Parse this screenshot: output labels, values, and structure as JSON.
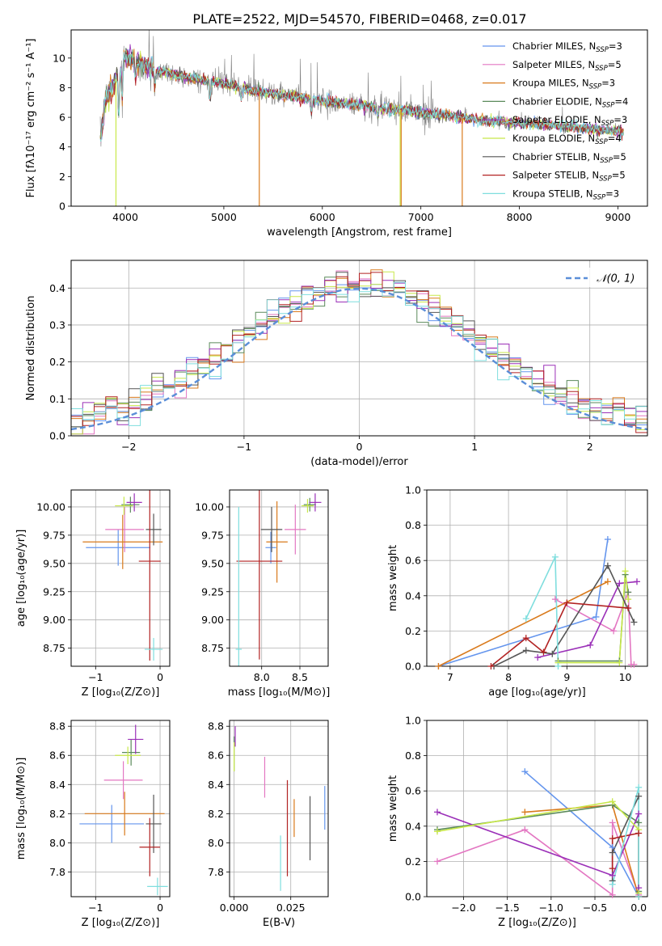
{
  "figure": {
    "title": "PLATE=2522, MJD=54570, FIBERID=0468, z=0.017"
  },
  "colors": {
    "cornflower": "#6495ed",
    "hotpink": "#e377c2",
    "orange": "#d97a1c",
    "darkgreen": "#5b8a5b",
    "purple": "#9b30b8",
    "yellowgreen": "#c8e84a",
    "dimgray": "#555555",
    "firebrick": "#b22222",
    "turquoise": "#7fdede",
    "gaussian": "#5a8ed8",
    "grid": "#b0b0b0",
    "spec_gray": "#808080"
  },
  "legend_models": [
    {
      "label": "Chabrier MILES, N",
      "sub": "SSP",
      "tail": "=3",
      "color": "#6495ed"
    },
    {
      "label": "Salpeter MILES, N",
      "sub": "SSP",
      "tail": "=5",
      "color": "#e377c2"
    },
    {
      "label": "Kroupa MILES, N",
      "sub": "SSP",
      "tail": "=3",
      "color": "#d97a1c"
    },
    {
      "label": "Chabrier ELODIE, N",
      "sub": "SSP",
      "tail": "=4",
      "color": "#5b8a5b"
    },
    {
      "label": "Salpeter ELODIE, N",
      "sub": "SSP",
      "tail": "=3",
      "color": "#9b30b8"
    },
    {
      "label": "Kroupa ELODIE, N",
      "sub": "SSP",
      "tail": "=4",
      "color": "#c8e84a"
    },
    {
      "label": "Chabrier STELIB, N",
      "sub": "SSP",
      "tail": "=5",
      "color": "#555555"
    },
    {
      "label": "Salpeter STELIB, N",
      "sub": "SSP",
      "tail": "=5",
      "color": "#b22222"
    },
    {
      "label": "Kroupa STELIB, N",
      "sub": "SSP",
      "tail": "=3",
      "color": "#7fdede"
    }
  ],
  "chart_data": [
    {
      "id": "spectrum",
      "type": "line",
      "xlabel": "wavelength [Angstrom, rest frame]",
      "ylabel": "Flux [fλ10⁻¹⁷ erg cm⁻² s⁻¹ A⁻¹]",
      "xlim": [
        3450,
        9300
      ],
      "ylim": [
        0,
        11.9
      ],
      "xticks": [
        4000,
        5000,
        6000,
        7000,
        8000,
        9000
      ],
      "yticks": [
        0,
        2,
        4,
        6,
        8,
        10
      ],
      "grid": false,
      "legend": "upper right",
      "continuum_anchors": {
        "x": [
          3750,
          3800,
          3900,
          4000,
          4100,
          4300,
          4500,
          4800,
          5000,
          5300,
          5500,
          5800,
          6000,
          6300,
          6500,
          6800,
          7000,
          7300,
          7500,
          7800,
          8000,
          8300,
          8600,
          9050
        ],
        "y": [
          4.5,
          7.2,
          8.5,
          10.2,
          9.8,
          9.2,
          8.9,
          8.5,
          8.3,
          7.8,
          7.6,
          7.3,
          7.1,
          6.9,
          6.7,
          6.5,
          6.3,
          6.1,
          5.9,
          5.7,
          5.6,
          5.5,
          5.3,
          5.0
        ]
      },
      "absorption_features": [
        {
          "x": 3934,
          "depth": 3.0
        },
        {
          "x": 3968,
          "depth": 2.5
        },
        {
          "x": 4102,
          "depth": 1.5
        },
        {
          "x": 4300,
          "depth": 1.2
        },
        {
          "x": 4861,
          "depth": 1.4
        },
        {
          "x": 5175,
          "depth": 0.8
        },
        {
          "x": 5890,
          "depth": 0.9
        },
        {
          "x": 6563,
          "depth": 0.6
        }
      ],
      "spikes": [
        {
          "x": 5360,
          "y": 0,
          "color": "#d97a1c"
        },
        {
          "x": 6790,
          "y": 0,
          "color": "#c8e84a"
        },
        {
          "x": 6800,
          "y": 0,
          "color": "#d97a1c"
        },
        {
          "x": 7420,
          "y": 0,
          "color": "#d97a1c"
        },
        {
          "x": 3905,
          "y": 0,
          "color": "#c8e84a"
        }
      ]
    },
    {
      "id": "residuals",
      "type": "step",
      "xlabel": "(data-model)/error",
      "ylabel": "Normed distribution",
      "xlim": [
        -2.5,
        2.5
      ],
      "ylim": [
        0,
        0.475
      ],
      "xticks": [
        -2,
        -1,
        0,
        1,
        2
      ],
      "yticks": [
        0,
        0.1,
        0.2,
        0.3,
        0.4
      ],
      "grid": true,
      "legend": "upper right",
      "gaussian_label": "𝒩(0, 1)",
      "bins": 50,
      "bin_range": [
        -2.5,
        2.5
      ]
    },
    {
      "id": "age-vs-z",
      "type": "errorbar",
      "xlabel": "Z [log₁₀(Z/Z⊙)]",
      "ylabel": "age  [log₁₀(age/yr)]",
      "xlim": [
        -1.38,
        0.15
      ],
      "ylim": [
        8.59,
        10.15
      ],
      "xticks": [
        -1,
        0
      ],
      "yticks": [
        8.75,
        9.0,
        9.25,
        9.5,
        9.75,
        10.0
      ],
      "grid": true,
      "points": [
        {
          "x": -0.65,
          "y": 9.64,
          "xerr": 0.5,
          "yerr": 0.16,
          "color": "#6495ed"
        },
        {
          "x": -0.55,
          "y": 9.8,
          "xerr": 0.3,
          "yerr": 0.2,
          "color": "#e377c2"
        },
        {
          "x": -0.58,
          "y": 9.69,
          "xerr": 0.62,
          "yerr": 0.24,
          "color": "#d97a1c"
        },
        {
          "x": -0.46,
          "y": 10.02,
          "xerr": 0.14,
          "yerr": 0.07,
          "color": "#5b8a5b"
        },
        {
          "x": -0.4,
          "y": 10.04,
          "xerr": 0.12,
          "yerr": 0.08,
          "color": "#9b30b8"
        },
        {
          "x": -0.56,
          "y": 10.01,
          "xerr": 0.14,
          "yerr": 0.08,
          "color": "#c8e84a"
        },
        {
          "x": -0.1,
          "y": 9.8,
          "xerr": 0.12,
          "yerr": 0.14,
          "color": "#555555"
        },
        {
          "x": -0.16,
          "y": 9.52,
          "xerr": 0.17,
          "yerr": 0.88,
          "color": "#b22222"
        },
        {
          "x": -0.1,
          "y": 8.74,
          "xerr": 0.14,
          "yerr": 0.1,
          "color": "#7fdede"
        }
      ]
    },
    {
      "id": "age-vs-mass",
      "type": "errorbar",
      "xlabel": "mass [log₁₀(M/M⊙)]",
      "ylabel": "",
      "xlim": [
        7.58,
        8.87
      ],
      "ylim": [
        8.59,
        10.15
      ],
      "xticks": [
        8.0,
        8.5
      ],
      "yticks": [
        8.75,
        9.0,
        9.25,
        9.5,
        9.75,
        10.0
      ],
      "grid": true,
      "points": [
        {
          "x": 8.12,
          "y": 9.64,
          "xerr": 0.07,
          "yerr": 0.14,
          "color": "#6495ed"
        },
        {
          "x": 8.44,
          "y": 9.8,
          "xerr": 0.14,
          "yerr": 0.22,
          "color": "#e377c2"
        },
        {
          "x": 8.2,
          "y": 9.69,
          "xerr": 0.14,
          "yerr": 0.36,
          "color": "#d97a1c"
        },
        {
          "x": 8.63,
          "y": 10.02,
          "xerr": 0.08,
          "yerr": 0.06,
          "color": "#5b8a5b"
        },
        {
          "x": 8.7,
          "y": 10.04,
          "xerr": 0.08,
          "yerr": 0.08,
          "color": "#9b30b8"
        },
        {
          "x": 8.6,
          "y": 10.01,
          "xerr": 0.08,
          "yerr": 0.06,
          "color": "#c8e84a"
        },
        {
          "x": 8.13,
          "y": 9.8,
          "xerr": 0.14,
          "yerr": 0.2,
          "color": "#555555"
        },
        {
          "x": 7.97,
          "y": 9.52,
          "xerr": 0.3,
          "yerr": 0.87,
          "color": "#b22222"
        },
        {
          "x": 7.7,
          "y": 8.74,
          "xerr": 0.04,
          "yerr": 1.26,
          "color": "#7fdede"
        }
      ]
    },
    {
      "id": "weight-vs-age",
      "type": "line",
      "xlabel": "age  [log₁₀(age/yr)]",
      "ylabel": "mass weight",
      "xlim": [
        6.6,
        10.38
      ],
      "ylim": [
        0,
        1.0
      ],
      "xticks": [
        7,
        8,
        9,
        10
      ],
      "yticks": [
        0,
        0.2,
        0.4,
        0.6,
        0.8,
        1.0
      ],
      "grid": true,
      "series": [
        {
          "color": "#6495ed",
          "x": [
            6.8,
            9.5,
            9.7
          ],
          "y": [
            0.0,
            0.28,
            0.72
          ]
        },
        {
          "color": "#e377c2",
          "x": [
            8.8,
            9.8,
            10.05,
            10.1,
            10.15
          ],
          "y": [
            0.38,
            0.2,
            0.42,
            0.01,
            0.01
          ]
        },
        {
          "color": "#d97a1c",
          "x": [
            6.8,
            9.7
          ],
          "y": [
            0.0,
            0.48
          ]
        },
        {
          "color": "#5b8a5b",
          "x": [
            8.85,
            9.9,
            10.0,
            10.05
          ],
          "y": [
            0.03,
            0.03,
            0.52,
            0.42
          ]
        },
        {
          "color": "#9b30b8",
          "x": [
            8.5,
            9.4,
            9.9,
            10.2
          ],
          "y": [
            0.05,
            0.12,
            0.47,
            0.48
          ]
        },
        {
          "color": "#c8e84a",
          "x": [
            8.85,
            9.9,
            10.0,
            10.05
          ],
          "y": [
            0.02,
            0.02,
            0.54,
            0.38
          ]
        },
        {
          "color": "#555555",
          "x": [
            7.75,
            8.3,
            8.75,
            9.7,
            10.15
          ],
          "y": [
            0.0,
            0.09,
            0.07,
            0.57,
            0.25
          ]
        },
        {
          "color": "#b22222",
          "x": [
            7.7,
            8.3,
            8.6,
            9.0,
            10.05
          ],
          "y": [
            0.0,
            0.16,
            0.08,
            0.36,
            0.33
          ]
        },
        {
          "color": "#7fdede",
          "x": [
            8.3,
            8.8,
            8.85
          ],
          "y": [
            0.27,
            0.62,
            0.0
          ]
        }
      ]
    },
    {
      "id": "mass-vs-z",
      "type": "errorbar",
      "xlabel": "Z [log₁₀(Z/Z⊙)]",
      "ylabel": "mass [log₁₀(M/M⊙)]",
      "xlim": [
        -1.38,
        0.15
      ],
      "ylim": [
        7.63,
        8.84
      ],
      "xticks": [
        -1,
        0
      ],
      "yticks": [
        7.8,
        8.0,
        8.2,
        8.4,
        8.6,
        8.8
      ],
      "grid": true,
      "points": [
        {
          "x": -0.75,
          "y": 8.13,
          "xerr": 0.5,
          "yerr": 0.13,
          "color": "#6495ed"
        },
        {
          "x": -0.57,
          "y": 8.43,
          "xerr": 0.3,
          "yerr": 0.13,
          "color": "#e377c2"
        },
        {
          "x": -0.55,
          "y": 8.2,
          "xerr": 0.62,
          "yerr": 0.15,
          "color": "#d97a1c"
        },
        {
          "x": -0.45,
          "y": 8.62,
          "xerr": 0.14,
          "yerr": 0.09,
          "color": "#5b8a5b"
        },
        {
          "x": -0.38,
          "y": 8.71,
          "xerr": 0.12,
          "yerr": 0.1,
          "color": "#9b30b8"
        },
        {
          "x": -0.5,
          "y": 8.6,
          "xerr": 0.2,
          "yerr": 0.06,
          "color": "#c8e84a"
        },
        {
          "x": -0.1,
          "y": 8.13,
          "xerr": 0.12,
          "yerr": 0.2,
          "color": "#555555"
        },
        {
          "x": -0.16,
          "y": 7.97,
          "xerr": 0.16,
          "yerr": 0.2,
          "color": "#b22222"
        },
        {
          "x": -0.04,
          "y": 7.7,
          "xerr": 0.16,
          "yerr": 0.06,
          "color": "#7fdede"
        }
      ]
    },
    {
      "id": "mass-vs-ebv",
      "type": "errorbar",
      "xlabel": "E(B-V)",
      "ylabel": "",
      "xlim": [
        -0.002,
        0.0415
      ],
      "ylim": [
        7.63,
        8.84
      ],
      "xticks": [
        0.0,
        0.025
      ],
      "yticks": [
        7.8,
        8.0,
        8.2,
        8.4,
        8.6,
        8.8
      ],
      "grid": true,
      "points": [
        {
          "x": 0.04,
          "y": 8.24,
          "xerr": 0,
          "yerr": 0.15,
          "color": "#6495ed"
        },
        {
          "x": 0.0135,
          "y": 8.45,
          "xerr": 0,
          "yerr": 0.14,
          "color": "#e377c2"
        },
        {
          "x": 0.0265,
          "y": 8.17,
          "xerr": 0,
          "yerr": 0.13,
          "color": "#d97a1c"
        },
        {
          "x": 0.0,
          "y": 8.61,
          "xerr": 0,
          "yerr": 0.12,
          "color": "#5b8a5b"
        },
        {
          "x": 0.0005,
          "y": 8.73,
          "xerr": 0,
          "yerr": 0.07,
          "color": "#9b30b8"
        },
        {
          "x": 0.0,
          "y": 8.59,
          "xerr": 0,
          "yerr": 0.1,
          "color": "#c8e84a"
        },
        {
          "x": 0.0335,
          "y": 8.1,
          "xerr": 0,
          "yerr": 0.22,
          "color": "#555555"
        },
        {
          "x": 0.0235,
          "y": 8.1,
          "xerr": 0,
          "yerr": 0.33,
          "color": "#b22222"
        },
        {
          "x": 0.0205,
          "y": 7.86,
          "xerr": 0,
          "yerr": 0.19,
          "color": "#7fdede"
        }
      ]
    },
    {
      "id": "weight-vs-z",
      "type": "line",
      "xlabel": "Z [log₁₀(Z/Z⊙)]",
      "ylabel": "mass weight",
      "xlim": [
        -2.42,
        0.1
      ],
      "ylim": [
        0,
        1.0
      ],
      "xticks": [
        -2.0,
        -1.5,
        -1.0,
        -0.5,
        0.0
      ],
      "yticks": [
        0,
        0.2,
        0.4,
        0.6,
        0.8,
        1.0
      ],
      "grid": true,
      "series": [
        {
          "color": "#6495ed",
          "x": [
            -1.3,
            -0.3,
            0.0
          ],
          "y": [
            0.71,
            0.28,
            0.0
          ]
        },
        {
          "color": "#e377c2",
          "x": [
            -2.3,
            -1.3,
            -0.3,
            -0.3,
            0.0
          ],
          "y": [
            0.2,
            0.38,
            0.01,
            0.42,
            0.01
          ]
        },
        {
          "color": "#d97a1c",
          "x": [
            -1.3,
            -0.3,
            0.0
          ],
          "y": [
            0.48,
            0.52,
            0.0
          ]
        },
        {
          "color": "#5b8a5b",
          "x": [
            -2.3,
            -0.3,
            0.0,
            0.0
          ],
          "y": [
            0.38,
            0.52,
            0.42,
            0.03
          ]
        },
        {
          "color": "#9b30b8",
          "x": [
            -2.3,
            -0.3,
            0.0,
            0.0
          ],
          "y": [
            0.48,
            0.12,
            0.47,
            0.05
          ]
        },
        {
          "color": "#c8e84a",
          "x": [
            -2.3,
            -0.3,
            0.0,
            0.0
          ],
          "y": [
            0.37,
            0.54,
            0.38,
            0.02
          ]
        },
        {
          "color": "#555555",
          "x": [
            -0.3,
            -0.3,
            0.0,
            0.0
          ],
          "y": [
            0.09,
            0.25,
            0.57,
            0.0
          ]
        },
        {
          "color": "#b22222",
          "x": [
            -0.3,
            -0.3,
            0.0,
            0.0
          ],
          "y": [
            0.16,
            0.33,
            0.36,
            0.0
          ]
        },
        {
          "color": "#7fdede",
          "x": [
            -0.3,
            0.0,
            0.0
          ],
          "y": [
            0.07,
            0.62,
            0.0
          ]
        }
      ]
    }
  ]
}
